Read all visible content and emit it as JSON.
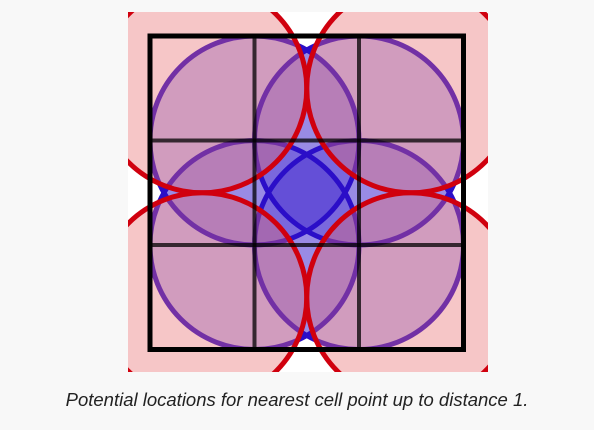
{
  "caption": "Potential locations for nearest cell point up to distance 1.",
  "diagram": {
    "grid_cells": 3,
    "circle_radius_cells": 1,
    "colors": {
      "background": "#f8f8f8",
      "panel": "#ffffff",
      "grid": "#000000",
      "blue_stroke": "#2b0ec8",
      "blue_fill": "#2b0ec8",
      "red_stroke": "#d0000e",
      "red_fill": "#e8686c"
    },
    "blue_circles": [
      {
        "cx": 1.0,
        "cy": 1.0
      },
      {
        "cx": 2.0,
        "cy": 1.0
      },
      {
        "cx": 1.0,
        "cy": 2.0
      },
      {
        "cx": 2.0,
        "cy": 2.0
      }
    ],
    "red_circles": [
      {
        "cx": 1.0,
        "cy": 1.0
      },
      {
        "cx": 2.0,
        "cy": 1.0
      },
      {
        "cx": 1.0,
        "cy": 2.0
      },
      {
        "cx": 2.0,
        "cy": 2.0
      }
    ]
  }
}
